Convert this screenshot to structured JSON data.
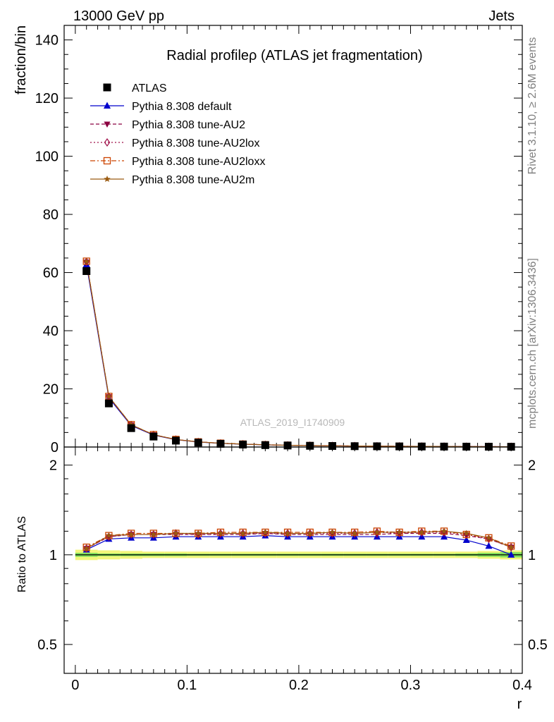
{
  "header": {
    "left": "13000 GeV pp",
    "right": "Jets"
  },
  "side_labels": {
    "rivet": "Rivet 3.1.10, ≥ 2.6M events",
    "mcplots": "mcplots.cern.ch [arXiv:1306.3436]"
  },
  "watermark": "ATLAS_2019_I1740909",
  "colors": {
    "data": "#000000",
    "default": "#0000cc",
    "au2": "#8b0040",
    "au2lox": "#a0104a",
    "au2loxx": "#cc4400",
    "au2m": "#9a5a10",
    "band_inner": "#7fe05a",
    "band_outer": "#f2f57a"
  },
  "chart_data": [
    {
      "type": "line",
      "title": "Radial profileρ (ATLAS jet fragmentation)",
      "ylabel": "fraction/bin",
      "xlabel": "",
      "xlim": [
        -0.01,
        0.4
      ],
      "ylim": [
        0,
        145
      ],
      "yticks": [
        0,
        20,
        40,
        60,
        80,
        100,
        120,
        140
      ],
      "x": [
        0.01,
        0.03,
        0.05,
        0.07,
        0.09,
        0.11,
        0.13,
        0.15,
        0.17,
        0.19,
        0.21,
        0.23,
        0.25,
        0.27,
        0.29,
        0.31,
        0.33,
        0.35,
        0.37,
        0.39
      ],
      "legend_position": "top-left",
      "series": [
        {
          "key": "data",
          "name": "ATLAS",
          "marker": "square-filled",
          "line": "none",
          "values": [
            60.5,
            15.0,
            6.5,
            3.6,
            2.2,
            1.5,
            1.1,
            0.85,
            0.65,
            0.52,
            0.42,
            0.35,
            0.29,
            0.25,
            0.21,
            0.18,
            0.15,
            0.13,
            0.11,
            0.09
          ]
        },
        {
          "key": "default",
          "name": "Pythia 8.308 default",
          "marker": "triangle-up-filled",
          "line": "solid",
          "values": [
            62.8,
            16.9,
            7.4,
            4.1,
            2.52,
            1.72,
            1.26,
            0.97,
            0.75,
            0.59,
            0.48,
            0.4,
            0.33,
            0.29,
            0.24,
            0.21,
            0.17,
            0.146,
            0.117,
            0.09
          ]
        },
        {
          "key": "au2",
          "name": "Pythia 8.308 tune-AU2",
          "marker": "triangle-down-filled",
          "line": "dashed",
          "values": [
            63.6,
            17.3,
            7.6,
            4.2,
            2.58,
            1.76,
            1.29,
            0.99,
            0.77,
            0.61,
            0.49,
            0.41,
            0.34,
            0.29,
            0.25,
            0.21,
            0.18,
            0.15,
            0.125,
            0.096
          ]
        },
        {
          "key": "au2lox",
          "name": "Pythia 8.308 tune-AU2lox",
          "marker": "diamond-open",
          "line": "dotted",
          "values": [
            63.7,
            17.3,
            7.6,
            4.2,
            2.59,
            1.76,
            1.3,
            1.0,
            0.77,
            0.61,
            0.49,
            0.41,
            0.34,
            0.3,
            0.25,
            0.21,
            0.18,
            0.151,
            0.125,
            0.096
          ]
        },
        {
          "key": "au2loxx",
          "name": "Pythia 8.308 tune-AU2loxx",
          "marker": "square-open",
          "line": "dashdot",
          "values": [
            63.9,
            17.4,
            7.7,
            4.25,
            2.6,
            1.77,
            1.31,
            1.01,
            0.78,
            0.61,
            0.5,
            0.41,
            0.34,
            0.3,
            0.25,
            0.22,
            0.18,
            0.152,
            0.126,
            0.097
          ]
        },
        {
          "key": "au2m",
          "name": "Pythia 8.308 tune-AU2m",
          "marker": "star",
          "line": "solid",
          "values": [
            63.8,
            17.4,
            7.65,
            4.22,
            2.59,
            1.77,
            1.3,
            1.0,
            0.77,
            0.61,
            0.49,
            0.41,
            0.34,
            0.3,
            0.25,
            0.21,
            0.18,
            0.151,
            0.125,
            0.096
          ]
        }
      ]
    },
    {
      "type": "line",
      "title": "",
      "ylabel": "Ratio to ATLAS",
      "xlabel": "r",
      "xlim": [
        -0.01,
        0.4
      ],
      "ylim": [
        0.4,
        2.3
      ],
      "yscale": "log",
      "yticks": [
        0.5,
        1,
        2
      ],
      "ytick_labels": [
        "0.5",
        "1",
        "2"
      ],
      "xticks": [
        0,
        0.1,
        0.2,
        0.3,
        0.4
      ],
      "xtick_labels": [
        "0",
        "0.1",
        "0.2",
        "0.3",
        "0.4"
      ],
      "x": [
        0.01,
        0.03,
        0.05,
        0.07,
        0.09,
        0.11,
        0.13,
        0.15,
        0.17,
        0.19,
        0.21,
        0.23,
        0.25,
        0.27,
        0.29,
        0.31,
        0.33,
        0.35,
        0.37,
        0.39
      ],
      "band_inner": [
        0.985,
        0.99,
        0.99,
        0.99,
        0.99,
        0.992,
        0.992,
        0.992,
        0.992,
        0.992,
        0.992,
        0.992,
        0.992,
        0.992,
        0.992,
        0.992,
        0.992,
        0.99,
        0.985,
        0.98
      ],
      "band_inner_upper": [
        1.015,
        1.01,
        1.01,
        1.01,
        1.01,
        1.008,
        1.008,
        1.008,
        1.008,
        1.008,
        1.008,
        1.008,
        1.008,
        1.008,
        1.008,
        1.008,
        1.008,
        1.01,
        1.015,
        1.02
      ],
      "band_outer_lower": [
        0.96,
        0.965,
        0.97,
        0.975,
        0.975,
        0.975,
        0.975,
        0.975,
        0.975,
        0.975,
        0.975,
        0.975,
        0.975,
        0.975,
        0.975,
        0.975,
        0.975,
        0.975,
        0.97,
        0.965
      ],
      "band_outer_upper": [
        1.04,
        1.035,
        1.03,
        1.025,
        1.025,
        1.025,
        1.025,
        1.025,
        1.025,
        1.025,
        1.025,
        1.025,
        1.025,
        1.025,
        1.025,
        1.025,
        1.025,
        1.025,
        1.03,
        1.035
      ],
      "series": [
        {
          "key": "default",
          "marker": "triangle-up-filled",
          "line": "solid",
          "values": [
            1.04,
            1.13,
            1.14,
            1.14,
            1.15,
            1.15,
            1.15,
            1.15,
            1.16,
            1.15,
            1.15,
            1.15,
            1.15,
            1.15,
            1.15,
            1.15,
            1.15,
            1.12,
            1.07,
            1.0
          ]
        },
        {
          "key": "au2",
          "marker": "triangle-down-filled",
          "line": "dashed",
          "values": [
            1.05,
            1.15,
            1.17,
            1.17,
            1.17,
            1.17,
            1.17,
            1.17,
            1.18,
            1.17,
            1.17,
            1.17,
            1.17,
            1.17,
            1.18,
            1.18,
            1.18,
            1.16,
            1.13,
            1.06
          ]
        },
        {
          "key": "au2lox",
          "marker": "diamond-open",
          "line": "dotted",
          "values": [
            1.05,
            1.15,
            1.17,
            1.17,
            1.18,
            1.17,
            1.18,
            1.18,
            1.18,
            1.18,
            1.18,
            1.18,
            1.18,
            1.19,
            1.18,
            1.19,
            1.19,
            1.17,
            1.13,
            1.06
          ]
        },
        {
          "key": "au2loxx",
          "marker": "square-open",
          "line": "dashdot",
          "values": [
            1.06,
            1.16,
            1.18,
            1.18,
            1.18,
            1.18,
            1.19,
            1.19,
            1.19,
            1.19,
            1.19,
            1.19,
            1.19,
            1.2,
            1.19,
            1.2,
            1.2,
            1.17,
            1.14,
            1.07
          ]
        },
        {
          "key": "au2m",
          "marker": "star",
          "line": "solid",
          "values": [
            1.05,
            1.16,
            1.17,
            1.17,
            1.18,
            1.18,
            1.18,
            1.18,
            1.19,
            1.18,
            1.18,
            1.19,
            1.18,
            1.19,
            1.19,
            1.19,
            1.2,
            1.18,
            1.14,
            1.06
          ]
        }
      ]
    }
  ]
}
